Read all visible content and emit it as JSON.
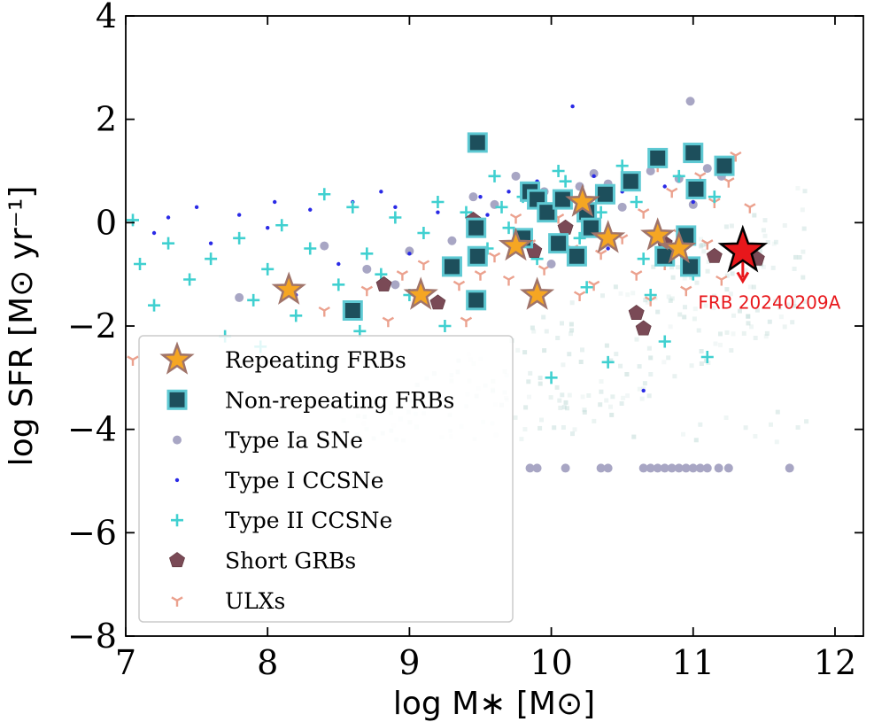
{
  "chart_data": {
    "type": "scatter",
    "title": "",
    "xlabel": "log M∗ [M⊙]",
    "ylabel": "log SFR [M⊙ yr⁻¹]",
    "xlim": [
      7,
      12.2
    ],
    "ylim": [
      -8,
      4
    ],
    "x_ticks": [
      7,
      8,
      9,
      10,
      11,
      12
    ],
    "x_tick_labels": [
      "7",
      "8",
      "9",
      "10",
      "11",
      "12"
    ],
    "y_ticks": [
      -8,
      -6,
      -4,
      -2,
      0,
      2,
      4
    ],
    "y_tick_labels": [
      "−8",
      "−6",
      "−4",
      "−2",
      "0",
      "2",
      "4"
    ],
    "legend_position": "lower-left",
    "colors": {
      "repeating": "#f5a623",
      "repeating_edge": "#a0746a",
      "nonrepeating": "#1d4f5c",
      "nonrepeating_edge": "#5ec9d3",
      "type_ia": "#a8a6c4",
      "type_i": "#2a2ae6",
      "type_ii": "#40d0d0",
      "sgrb": "#7a4a56",
      "ulx": "#e8907a",
      "frb_highlight": "#e8171b",
      "background_density": "#b8d6d2"
    },
    "series": [
      {
        "name": "Repeating FRBs",
        "marker": "star",
        "points": [
          [
            8.15,
            -1.3
          ],
          [
            9.08,
            -1.4
          ],
          [
            9.75,
            -0.45
          ],
          [
            9.9,
            -1.4
          ],
          [
            10.22,
            0.4
          ],
          [
            10.4,
            -0.3
          ],
          [
            10.75,
            -0.25
          ],
          [
            10.9,
            -0.5
          ]
        ]
      },
      {
        "name": "Non-repeating FRBs",
        "marker": "square",
        "points": [
          [
            9.48,
            1.55
          ],
          [
            8.6,
            -1.7
          ],
          [
            9.3,
            -0.85
          ],
          [
            9.47,
            -0.1
          ],
          [
            9.48,
            -0.65
          ],
          [
            9.47,
            -1.5
          ],
          [
            9.8,
            -0.3
          ],
          [
            9.85,
            0.6
          ],
          [
            9.9,
            0.45
          ],
          [
            9.97,
            0.2
          ],
          [
            10.05,
            -0.4
          ],
          [
            10.08,
            0.45
          ],
          [
            10.18,
            -0.65
          ],
          [
            10.25,
            0.2
          ],
          [
            10.28,
            -0.1
          ],
          [
            10.38,
            0.55
          ],
          [
            10.56,
            0.8
          ],
          [
            10.75,
            1.25
          ],
          [
            10.8,
            -0.65
          ],
          [
            10.95,
            -0.25
          ],
          [
            10.98,
            -0.85
          ],
          [
            11.0,
            1.35
          ],
          [
            11.02,
            0.65
          ],
          [
            11.22,
            1.1
          ]
        ]
      },
      {
        "name": "Type Ia SNe",
        "marker": "circle",
        "points": [
          [
            9.85,
            -4.75
          ],
          [
            9.9,
            -4.75
          ],
          [
            10.1,
            -4.75
          ],
          [
            10.35,
            -4.75
          ],
          [
            10.4,
            -4.75
          ],
          [
            10.65,
            -4.75
          ],
          [
            10.7,
            -4.75
          ],
          [
            10.75,
            -4.75
          ],
          [
            10.8,
            -4.75
          ],
          [
            10.85,
            -4.75
          ],
          [
            10.9,
            -4.75
          ],
          [
            10.95,
            -4.75
          ],
          [
            11.0,
            -4.75
          ],
          [
            11.05,
            -4.75
          ],
          [
            11.1,
            -4.75
          ],
          [
            11.18,
            -4.75
          ],
          [
            11.25,
            -4.75
          ],
          [
            11.68,
            -4.75
          ],
          [
            10.98,
            2.35
          ],
          [
            10.6,
            0.9
          ],
          [
            10.4,
            0.75
          ],
          [
            10.9,
            0.85
          ],
          [
            11.1,
            1.05
          ],
          [
            9.95,
            0.6
          ],
          [
            10.2,
            0.7
          ],
          [
            9.6,
            0.35
          ],
          [
            9.3,
            -0.35
          ],
          [
            8.4,
            -0.45
          ],
          [
            7.8,
            -1.45
          ],
          [
            8.7,
            -0.9
          ],
          [
            9.0,
            -0.55
          ],
          [
            10.5,
            0.3
          ],
          [
            11.2,
            0.9
          ],
          [
            10.7,
            1.0
          ],
          [
            9.75,
            0.9
          ],
          [
            10.0,
            -0.8
          ],
          [
            8.9,
            -1.2
          ],
          [
            10.3,
            0.95
          ],
          [
            11.0,
            0.35
          ],
          [
            9.45,
            0.5
          ]
        ]
      },
      {
        "name": "Type I CCSNe",
        "marker": "dot",
        "points": [
          [
            7.3,
            0.1
          ],
          [
            7.5,
            0.3
          ],
          [
            7.8,
            0.15
          ],
          [
            8.0,
            -0.1
          ],
          [
            8.3,
            0.25
          ],
          [
            8.6,
            0.4
          ],
          [
            8.9,
            0.3
          ],
          [
            9.2,
            0.2
          ],
          [
            9.5,
            0.5
          ],
          [
            9.7,
            0.6
          ],
          [
            9.9,
            0.8
          ],
          [
            10.1,
            0.45
          ],
          [
            10.15,
            2.25
          ],
          [
            10.3,
            0.9
          ],
          [
            10.5,
            0.6
          ],
          [
            10.65,
            -3.25
          ],
          [
            10.8,
            0.7
          ],
          [
            11.0,
            0.4
          ],
          [
            8.5,
            -0.8
          ],
          [
            9.0,
            -0.6
          ],
          [
            9.35,
            -0.9
          ],
          [
            8.2,
            -1.4
          ],
          [
            7.6,
            -0.4
          ],
          [
            9.8,
            -0.2
          ],
          [
            10.4,
            -0.5
          ],
          [
            8.8,
            0.6
          ],
          [
            9.55,
            0.15
          ],
          [
            7.2,
            -0.2
          ],
          [
            10.9,
            -0.1
          ],
          [
            8.05,
            0.4
          ]
        ]
      },
      {
        "name": "Type II CCSNe",
        "marker": "plus",
        "points": [
          [
            7.05,
            0.05
          ],
          [
            7.1,
            -0.8
          ],
          [
            7.2,
            -1.6
          ],
          [
            7.3,
            -0.4
          ],
          [
            7.45,
            -1.1
          ],
          [
            7.6,
            -0.7
          ],
          [
            7.7,
            -2.2
          ],
          [
            7.8,
            -0.3
          ],
          [
            7.9,
            -1.5
          ],
          [
            8.0,
            -0.9
          ],
          [
            8.1,
            -0.05
          ],
          [
            8.2,
            -1.8
          ],
          [
            8.3,
            -0.5
          ],
          [
            8.4,
            0.55
          ],
          [
            8.5,
            -1.2
          ],
          [
            8.6,
            0.3
          ],
          [
            8.7,
            -0.6
          ],
          [
            8.8,
            -1.0
          ],
          [
            8.9,
            0.1
          ],
          [
            9.0,
            -1.4
          ],
          [
            9.1,
            -0.2
          ],
          [
            9.2,
            0.4
          ],
          [
            9.3,
            -0.8
          ],
          [
            9.4,
            0.2
          ],
          [
            9.55,
            -0.5
          ],
          [
            9.6,
            0.9
          ],
          [
            9.7,
            -0.1
          ],
          [
            9.8,
            0.5
          ],
          [
            9.9,
            -0.7
          ],
          [
            10.0,
            -3.0
          ],
          [
            10.1,
            0.8
          ],
          [
            10.2,
            -0.3
          ],
          [
            10.25,
            -1.25
          ],
          [
            10.35,
            0.2
          ],
          [
            10.4,
            -2.7
          ],
          [
            10.5,
            1.1
          ],
          [
            10.6,
            0.4
          ],
          [
            10.65,
            -0.7
          ],
          [
            10.7,
            -1.4
          ],
          [
            10.8,
            -2.3
          ],
          [
            10.9,
            0.9
          ],
          [
            11.0,
            -1.0
          ],
          [
            11.1,
            -2.6
          ],
          [
            11.15,
            0.5
          ],
          [
            10.95,
            -0.2
          ],
          [
            9.25,
            -2.0
          ],
          [
            8.65,
            -2.1
          ],
          [
            7.95,
            -2.4
          ],
          [
            9.65,
            0.3
          ],
          [
            10.05,
            1.0
          ]
        ]
      },
      {
        "name": "Short GRBs",
        "marker": "pentagon",
        "points": [
          [
            8.82,
            -1.2
          ],
          [
            9.2,
            -1.55
          ],
          [
            9.45,
            0.05
          ],
          [
            9.88,
            -0.55
          ],
          [
            10.1,
            -0.1
          ],
          [
            10.6,
            -1.75
          ],
          [
            10.65,
            -2.05
          ],
          [
            11.15,
            -0.65
          ],
          [
            11.45,
            -0.7
          ],
          [
            10.8,
            -0.4
          ]
        ]
      },
      {
        "name": "ULXs",
        "marker": "tri",
        "points": [
          [
            7.05,
            -2.65
          ],
          [
            8.4,
            -1.7
          ],
          [
            8.7,
            -1.3
          ],
          [
            8.95,
            -1.0
          ],
          [
            9.1,
            -0.8
          ],
          [
            9.2,
            -1.55
          ],
          [
            9.35,
            -1.2
          ],
          [
            9.5,
            -1.0
          ],
          [
            9.6,
            -0.65
          ],
          [
            9.7,
            -1.1
          ],
          [
            9.85,
            -0.4
          ],
          [
            9.95,
            -0.9
          ],
          [
            10.05,
            0.1
          ],
          [
            10.15,
            -0.5
          ],
          [
            10.25,
            0.3
          ],
          [
            10.3,
            -1.2
          ],
          [
            10.4,
            0.5
          ],
          [
            10.5,
            -0.3
          ],
          [
            10.55,
            0.8
          ],
          [
            10.6,
            -1.0
          ],
          [
            10.65,
            0.2
          ],
          [
            10.75,
            1.1
          ],
          [
            10.8,
            -0.8
          ],
          [
            10.85,
            0.6
          ],
          [
            10.9,
            -0.2
          ],
          [
            11.0,
            1.3
          ],
          [
            11.05,
            0.9
          ],
          [
            11.1,
            -0.4
          ],
          [
            11.15,
            0.4
          ],
          [
            11.25,
            0.8
          ],
          [
            11.3,
            1.3
          ],
          [
            11.4,
            0.3
          ],
          [
            10.95,
            -1.3
          ],
          [
            10.2,
            -1.4
          ],
          [
            9.4,
            -1.9
          ],
          [
            8.85,
            -1.9
          ],
          [
            10.7,
            -1.5
          ],
          [
            11.2,
            -1.1
          ],
          [
            9.75,
            0.1
          ],
          [
            10.35,
            -0.6
          ]
        ]
      }
    ],
    "highlight": {
      "label": "FRB 20240209A",
      "x": 11.35,
      "y": -0.55,
      "upper_limit": true
    },
    "legend": [
      {
        "label": "Repeating FRBs",
        "marker": "star"
      },
      {
        "label": "Non-repeating FRBs",
        "marker": "square"
      },
      {
        "label": "Type Ia SNe",
        "marker": "circle"
      },
      {
        "label": "Type I CCSNe",
        "marker": "dot"
      },
      {
        "label": "Type II CCSNe",
        "marker": "plus"
      },
      {
        "label": "Short GRBs",
        "marker": "pentagon"
      },
      {
        "label": "ULXs",
        "marker": "tri"
      }
    ]
  }
}
